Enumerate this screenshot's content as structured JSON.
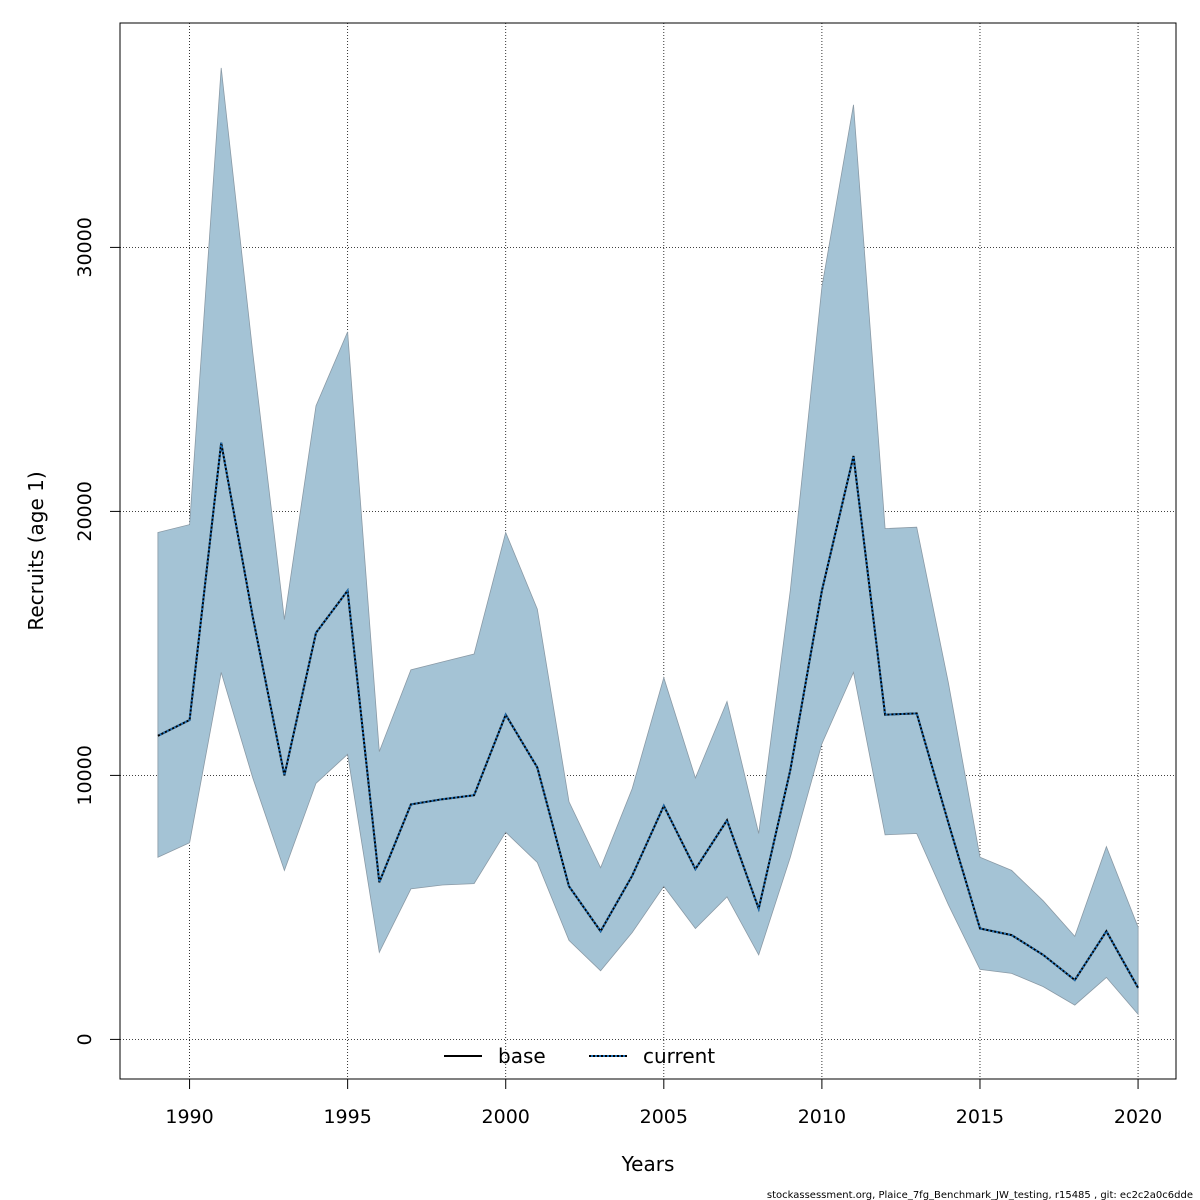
{
  "chart_data": {
    "type": "area",
    "title": "",
    "xlabel": "Years",
    "ylabel": "Recruits (age 1)",
    "xlim": [
      1987.8,
      2021.2
    ],
    "ylim": [
      -1500,
      38500
    ],
    "xticks": [
      1990,
      1995,
      2000,
      2005,
      2010,
      2015,
      2020
    ],
    "xtick_labels": [
      "1990",
      "1995",
      "2000",
      "2005",
      "2010",
      "2015",
      "2020"
    ],
    "yticks": [
      0,
      10000,
      20000,
      30000
    ],
    "ytick_labels": [
      "0",
      "10000",
      "20000",
      "30000"
    ],
    "grid": true,
    "legend_position": "bottom-center",
    "band_color": "#a4c3d5",
    "band_edge_color": "#8a9aa6",
    "line_color": "#000000",
    "current_dash_color": "#1e6fb5",
    "x": [
      1989,
      1990,
      1991,
      1992,
      1993,
      1994,
      1995,
      1996,
      1997,
      1998,
      1999,
      2000,
      2001,
      2002,
      2003,
      2004,
      2005,
      2006,
      2007,
      2008,
      2009,
      2010,
      2011,
      2012,
      2013,
      2014,
      2015,
      2016,
      2017,
      2018,
      2019,
      2020
    ],
    "series": [
      {
        "name": "base",
        "style": "solid",
        "values": [
          11500,
          12100,
          22600,
          16000,
          10000,
          15400,
          17000,
          5950,
          8900,
          9100,
          9250,
          12300,
          10300,
          5800,
          4100,
          6200,
          8850,
          6450,
          8300,
          4950,
          10200,
          17000,
          22100,
          12300,
          12350,
          8200,
          4200,
          3950,
          3200,
          2250,
          4100,
          1950
        ]
      },
      {
        "name": "current",
        "style": "dotted",
        "values": [
          11500,
          12100,
          22600,
          16000,
          10000,
          15400,
          17000,
          5950,
          8900,
          9100,
          9250,
          12300,
          10300,
          5800,
          4100,
          6200,
          8850,
          6450,
          8300,
          4950,
          10200,
          17000,
          22100,
          12300,
          12350,
          8200,
          4200,
          3950,
          3200,
          2250,
          4100,
          1950
        ]
      }
    ],
    "band": {
      "upper": [
        19200,
        19500,
        36800,
        26000,
        15900,
        24000,
        26800,
        10900,
        14000,
        14300,
        14600,
        19200,
        16300,
        9000,
        6500,
        9500,
        13700,
        9900,
        12800,
        7800,
        17000,
        28500,
        35400,
        19350,
        19400,
        13500,
        6900,
        6400,
        5250,
        3900,
        7300,
        4250
      ],
      "lower": [
        6900,
        7450,
        13900,
        9900,
        6400,
        9700,
        10800,
        3300,
        5700,
        5850,
        5900,
        7850,
        6700,
        3750,
        2600,
        4050,
        5800,
        4200,
        5400,
        3200,
        6900,
        11200,
        13900,
        7750,
        7800,
        5100,
        2650,
        2500,
        2000,
        1300,
        2350,
        950
      ]
    }
  },
  "footer": "stockassessment.org, Plaice_7fg_Benchmark_JW_testing, r15485 , git: ec2c2a0c6dde"
}
